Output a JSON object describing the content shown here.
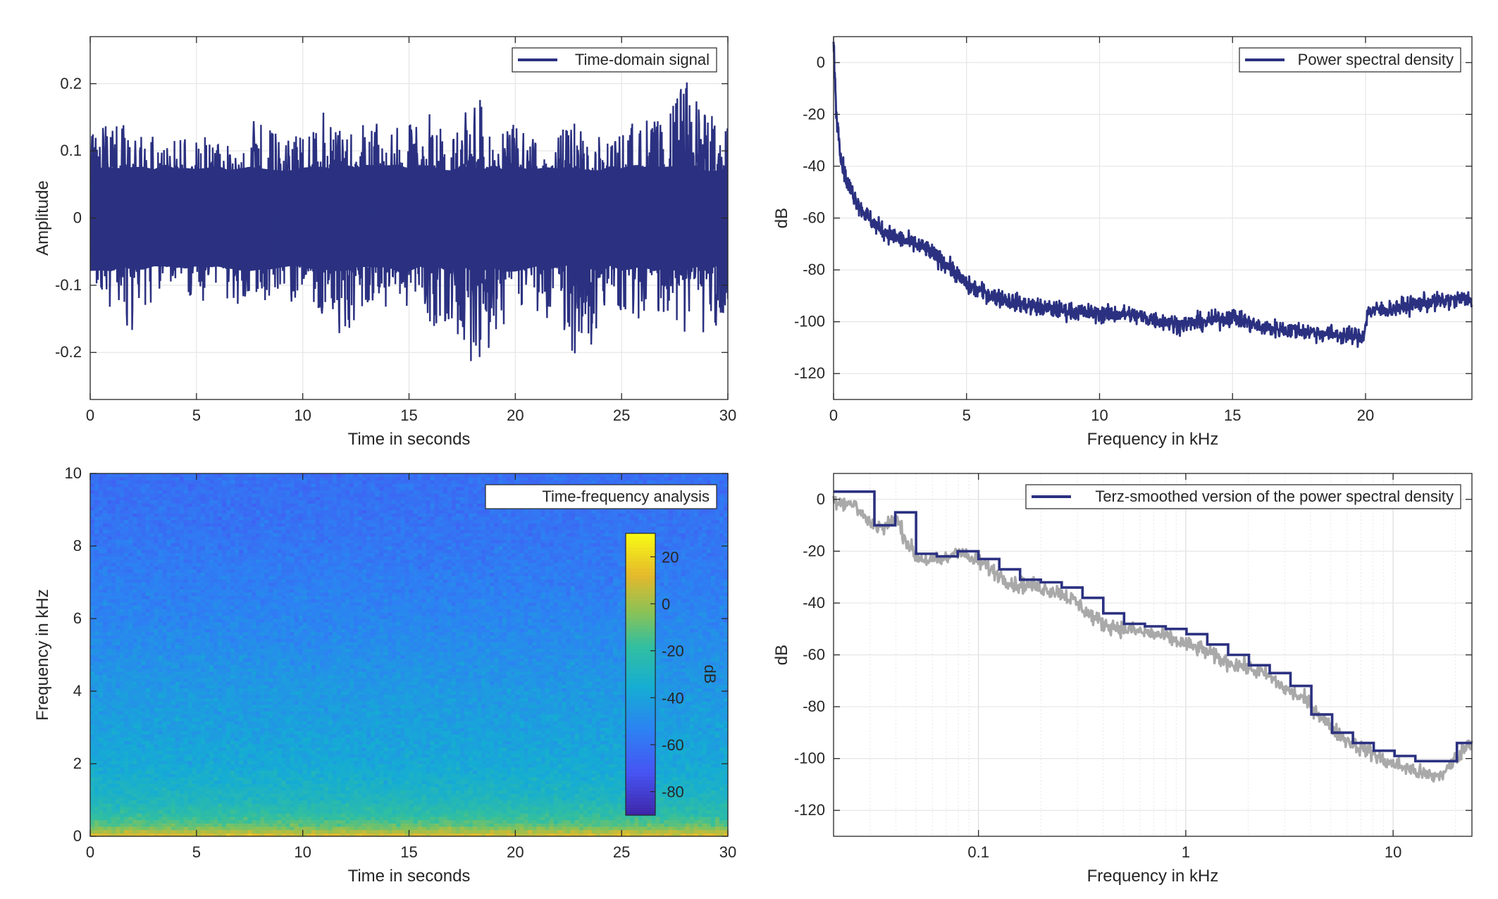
{
  "colors": {
    "series": "#2b3180",
    "raw": "#a9a9a9",
    "grid": "#e6e6e6",
    "axis": "#262626"
  },
  "chart_data": [
    {
      "id": "time-domain",
      "type": "line",
      "xlabel": "Time in seconds",
      "ylabel": "Amplitude",
      "xlim": [
        0,
        30
      ],
      "ylim": [
        -0.27,
        0.27
      ],
      "xticks": [
        0,
        5,
        10,
        15,
        20,
        25,
        30
      ],
      "yticks": [
        -0.2,
        -0.1,
        0,
        0.1,
        0.2
      ],
      "xtick_labels": [
        "0",
        "5",
        "10",
        "15",
        "20",
        "25",
        "30"
      ],
      "ytick_labels": [
        "-0.2",
        "-0.1",
        "0",
        "0.1",
        "0.2"
      ],
      "grid": true,
      "legend_position": "top-right",
      "series": [
        {
          "name": "Time-domain signal",
          "x": [
            0,
            1,
            2,
            3,
            4,
            5,
            6,
            7,
            8,
            9,
            10,
            11,
            12,
            13,
            14,
            15,
            16,
            17,
            18,
            19,
            20,
            21,
            22,
            23,
            24,
            25,
            26,
            27,
            28,
            29,
            30
          ],
          "upper": [
            0.12,
            0.17,
            0.12,
            0.13,
            0.12,
            0.13,
            0.11,
            0.14,
            0.15,
            0.12,
            0.13,
            0.16,
            0.12,
            0.15,
            0.13,
            0.14,
            0.16,
            0.12,
            0.2,
            0.13,
            0.14,
            0.12,
            0.13,
            0.15,
            0.12,
            0.13,
            0.16,
            0.14,
            0.21,
            0.16,
            0.16
          ],
          "lower": [
            -0.1,
            -0.14,
            -0.17,
            -0.12,
            -0.1,
            -0.13,
            -0.11,
            -0.14,
            -0.12,
            -0.13,
            -0.12,
            -0.15,
            -0.18,
            -0.13,
            -0.14,
            -0.13,
            -0.16,
            -0.17,
            -0.22,
            -0.19,
            -0.13,
            -0.14,
            -0.16,
            -0.22,
            -0.17,
            -0.14,
            -0.16,
            -0.14,
            -0.18,
            -0.17,
            -0.16
          ]
        }
      ]
    },
    {
      "id": "psd",
      "type": "line",
      "xlabel": "Frequency in kHz",
      "ylabel": "dB",
      "xlim": [
        0,
        24
      ],
      "ylim": [
        -130,
        10
      ],
      "xticks": [
        0,
        5,
        10,
        15,
        20
      ],
      "yticks": [
        -120,
        -100,
        -80,
        -60,
        -40,
        -20,
        0
      ],
      "xtick_labels": [
        "0",
        "5",
        "10",
        "15",
        "20"
      ],
      "ytick_labels": [
        "-120",
        "-100",
        "-80",
        "-60",
        "-40",
        "-20",
        "0"
      ],
      "grid": true,
      "legend_position": "top-right",
      "series": [
        {
          "name": "Power spectral density",
          "x": [
            0,
            0.05,
            0.1,
            0.2,
            0.3,
            0.5,
            0.8,
            1,
            1.5,
            2,
            2.5,
            3,
            3.5,
            4,
            4.5,
            5,
            6,
            7,
            8,
            9,
            10,
            11,
            12,
            13,
            14,
            15,
            16,
            17,
            18,
            19,
            19.9,
            20.1,
            21,
            22,
            23,
            24
          ],
          "y": [
            8,
            -5,
            -20,
            -28,
            -38,
            -46,
            -52,
            -56,
            -62,
            -66,
            -68,
            -70,
            -72,
            -76,
            -80,
            -86,
            -90,
            -93,
            -95,
            -96,
            -97,
            -97,
            -99,
            -101,
            -100,
            -98,
            -102,
            -103,
            -104,
            -105,
            -106,
            -96,
            -95,
            -93,
            -92,
            -91
          ]
        }
      ]
    },
    {
      "id": "spectrogram",
      "type": "heatmap",
      "xlabel": "Time in seconds",
      "ylabel": "Frequency in kHz",
      "xlim": [
        0,
        30
      ],
      "ylim": [
        0,
        10
      ],
      "xticks": [
        0,
        5,
        10,
        15,
        20,
        25,
        30
      ],
      "yticks": [
        0,
        2,
        4,
        6,
        8,
        10
      ],
      "xtick_labels": [
        "0",
        "5",
        "10",
        "15",
        "20",
        "25",
        "30"
      ],
      "ytick_labels": [
        "0",
        "2",
        "4",
        "6",
        "8",
        "10"
      ],
      "legend_position": "top-right",
      "legend_entry": "Time-frequency analysis",
      "colorbar": {
        "label": "dB",
        "range": [
          -90,
          30
        ],
        "ticks": [
          -80,
          -60,
          -40,
          -20,
          0,
          20
        ],
        "tick_labels": [
          "-80",
          "-60",
          "-40",
          "-20",
          "0",
          "20"
        ]
      },
      "frequency_profile_khz": [
        0,
        0.1,
        0.3,
        0.6,
        1,
        1.5,
        2,
        3,
        4,
        5,
        6,
        7,
        8,
        9,
        10
      ],
      "frequency_profile_db": [
        12,
        5,
        -10,
        -20,
        -28,
        -33,
        -37,
        -41,
        -44,
        -48,
        -52,
        -55,
        -58,
        -60,
        -61
      ]
    },
    {
      "id": "terz",
      "type": "line",
      "xlabel": "Frequency in kHz",
      "ylabel": "dB",
      "xscale": "log",
      "xlim": [
        0.02,
        24
      ],
      "ylim": [
        -130,
        10
      ],
      "xticks": [
        0.1,
        1,
        10
      ],
      "yticks": [
        -120,
        -100,
        -80,
        -60,
        -40,
        -20,
        0
      ],
      "xtick_labels": [
        "0.1",
        "1",
        "10"
      ],
      "ytick_labels": [
        "-120",
        "-100",
        "-80",
        "-60",
        "-40",
        "-20",
        "0"
      ],
      "grid": true,
      "legend_position": "top-right",
      "series": [
        {
          "name": "Terz-smoothed version of the power spectral density",
          "edges": [
            0.02,
            0.0315,
            0.0397,
            0.05,
            0.063,
            0.0794,
            0.1,
            0.126,
            0.1587,
            0.2,
            0.252,
            0.3175,
            0.4,
            0.504,
            0.635,
            0.8,
            1.008,
            1.27,
            1.6,
            2.016,
            2.54,
            3.2,
            4.032,
            5.08,
            6.4,
            8.064,
            10.16,
            12.8,
            16.13,
            20.32,
            24
          ],
          "values": [
            3,
            -10,
            -5,
            -21,
            -22,
            -20,
            -23,
            -27,
            -31,
            -32,
            -34,
            -38,
            -44,
            -48,
            -49,
            -50,
            -52,
            -56,
            -60,
            -64,
            -67,
            -72,
            -83,
            -90,
            -94,
            -97,
            -99,
            -101,
            -101,
            -94
          ]
        },
        {
          "name": "",
          "x": [
            0.02,
            0.025,
            0.03,
            0.035,
            0.04,
            0.045,
            0.05,
            0.06,
            0.07,
            0.08,
            0.09,
            0.1,
            0.12,
            0.15,
            0.18,
            0.2,
            0.25,
            0.3,
            0.35,
            0.4,
            0.5,
            0.6,
            0.7,
            0.8,
            1,
            1.2,
            1.5,
            2,
            2.5,
            3,
            3.5,
            4,
            5,
            6,
            7,
            8,
            9,
            10,
            12,
            14,
            16,
            18,
            20,
            22,
            24
          ],
          "y": [
            0,
            -2,
            -9,
            -11,
            -7,
            -16,
            -22,
            -24,
            -23,
            -19,
            -23,
            -24,
            -28,
            -33,
            -33,
            -34,
            -36,
            -40,
            -45,
            -48,
            -50,
            -51,
            -52,
            -53,
            -56,
            -58,
            -62,
            -65,
            -68,
            -73,
            -76,
            -79,
            -88,
            -93,
            -96,
            -98,
            -101,
            -102,
            -104,
            -106,
            -107,
            -105,
            -100,
            -96,
            -93
          ]
        }
      ]
    }
  ]
}
